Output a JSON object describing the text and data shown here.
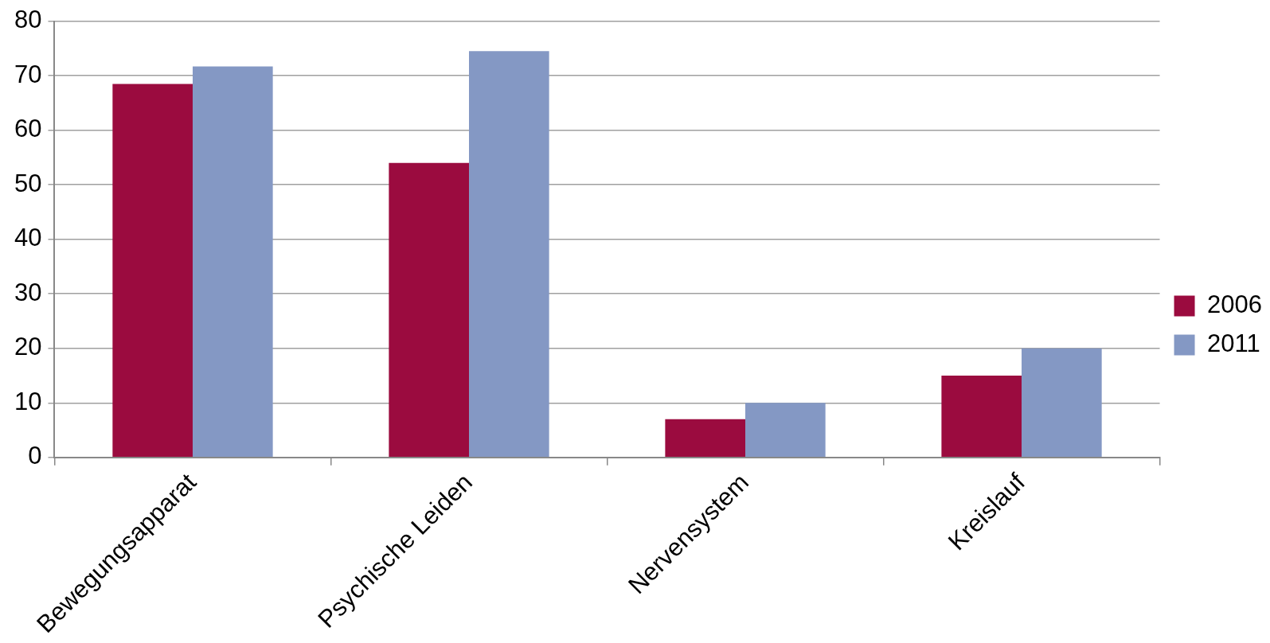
{
  "chart_data": {
    "type": "bar",
    "categories": [
      "Bewegungsapparat",
      "Psychische Leiden",
      "Nervensystem",
      "Kreislauf"
    ],
    "series": [
      {
        "name": "2006",
        "color": "#9b0b3f",
        "values": [
          68.5,
          54,
          7,
          15
        ]
      },
      {
        "name": "2011",
        "color": "#8498c4",
        "values": [
          71.7,
          74.5,
          10,
          20
        ]
      }
    ],
    "ylim": [
      0,
      80
    ],
    "yticks": [
      0,
      10,
      20,
      30,
      40,
      50,
      60,
      70,
      80
    ],
    "grid": "y",
    "legend": "right"
  }
}
